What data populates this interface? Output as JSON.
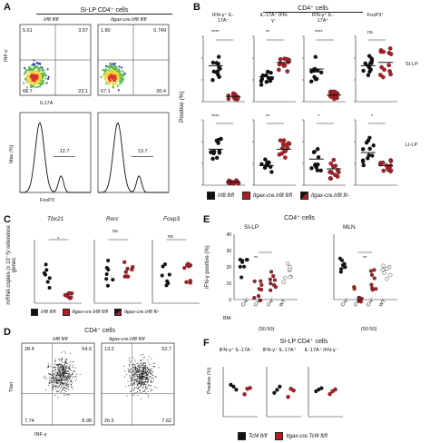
{
  "colors": {
    "black": "#111111",
    "red": "#b01e24",
    "density_blue": "#3a3fb8",
    "density_green": "#56b84a",
    "density_yellow": "#f2d43a",
    "density_red": "#d8382b"
  },
  "panelA": {
    "label": "A",
    "title": "SI-LP CD4⁺ cells",
    "plots": [
      {
        "header": "Irf8 fl/fl",
        "q": [
          "5.61",
          "3.57",
          "68.7",
          "22.1"
        ],
        "gate": "12.7"
      },
      {
        "header": "Itgax-cre.Irf8 fl/fl",
        "q": [
          "1.80",
          "0.749",
          "67.1",
          "30.4"
        ],
        "gate": "13.7"
      }
    ],
    "y_label_top": "INF-γ",
    "x_label_top": "IL17A",
    "y_label_bottom": "Max (%)",
    "x_label_bottom": "FoxP3"
  },
  "panelB": {
    "label": "B",
    "title": "CD4⁺ cells",
    "y_label": "Positive (%)",
    "columns": [
      "IFN-γ⁺ IL-17A⁻",
      "IL-17A⁺ IFN-γ⁻",
      "IFN-γ⁺ IL-17A⁺",
      "FoxP3⁺"
    ],
    "sig_top": [
      "****",
      "**",
      "****",
      "ns"
    ],
    "sig_bottom": [
      "****",
      "**",
      "*",
      "*"
    ],
    "row_labels": [
      "SI-LP",
      "LI-LP"
    ],
    "legend": [
      "Irf8 fl/fl",
      "Itgax-cre.Irf8 fl/fl",
      "Itgax-cre.Irf8 fl/-"
    ]
  },
  "panelC": {
    "label": "C",
    "y_label": "mRNA copies (x 10⁻³)/ reference genes",
    "genes": [
      "Tbx21",
      "Rorc",
      "Foxp3"
    ],
    "sig": [
      "*",
      "ns",
      "ns"
    ],
    "legend": [
      "Irf8 fl/fl",
      "Itgax-cre.Irf8 fl/fl",
      "Itgax-cre.Irf8 fl/-"
    ]
  },
  "panelD": {
    "label": "D",
    "title": "CD4⁺ cells",
    "plots": [
      {
        "header": "Irf8 fl/fl",
        "q": [
          "28.4",
          "54.9",
          "7.74",
          "8.98"
        ]
      },
      {
        "header": "Itgax-cre.Irf8 fl/fl",
        "q": [
          "13.2",
          "52.7",
          "26.5",
          "7.62"
        ]
      }
    ],
    "y_label": "Tbet",
    "x_label": "INF-γ"
  },
  "panelE": {
    "label": "E",
    "title": "CD4⁺ cells",
    "groups": [
      "SI-LP",
      "MLN"
    ],
    "y_label": "IFN-γ positive (%)",
    "y_ticks": [
      "0",
      "10",
      "20",
      "30",
      "40"
    ],
    "sig": [
      "**",
      "**"
    ],
    "bm_label": "BM:",
    "x_cats": [
      "Cre⁻",
      "Cre⁺",
      "Cre⁻",
      "WT"
    ],
    "ratio": "(50:50)"
  },
  "panelF": {
    "label": "F",
    "title": "SI-LP CD4⁺ cells",
    "y_label": "Positive (%)",
    "columns": [
      "IFN-γ⁺ IL-17A⁻",
      "IFN-γ⁺ IL-17A⁺",
      "IL-17A⁺ IFN-γ⁻"
    ],
    "legend": [
      "Tcf4 fl/fl",
      "Itgax-cre.Tcf4 fl/fl"
    ]
  }
}
